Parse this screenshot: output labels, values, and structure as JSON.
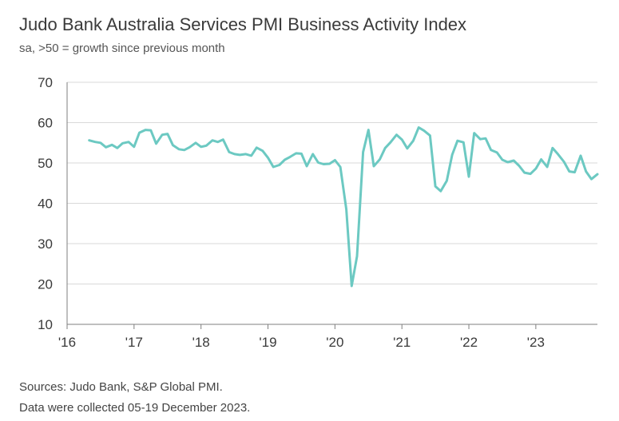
{
  "chart_data": {
    "type": "line",
    "title": "Judo Bank Australia Services PMI Business Activity Index",
    "subtitle": "sa, >50 = growth since previous month",
    "xlabel": "",
    "ylabel": "",
    "ylim": [
      10,
      70
    ],
    "yticks": [
      10,
      20,
      30,
      40,
      50,
      60,
      70
    ],
    "xlim": [
      2016.0,
      2023.92
    ],
    "xticks": [
      {
        "value": 2016,
        "label": "'16"
      },
      {
        "value": 2017,
        "label": "'17"
      },
      {
        "value": 2018,
        "label": "'18"
      },
      {
        "value": 2019,
        "label": "'19"
      },
      {
        "value": 2020,
        "label": "'20"
      },
      {
        "value": 2021,
        "label": "'21"
      },
      {
        "value": 2022,
        "label": "'22"
      },
      {
        "value": 2023,
        "label": "'23"
      }
    ],
    "grid": "horizontal",
    "line_color": "#6cc9c2",
    "series": [
      {
        "name": "",
        "x": [
          2016.33,
          2016.42,
          2016.5,
          2016.58,
          2016.67,
          2016.75,
          2016.83,
          2016.92,
          2017.0,
          2017.08,
          2017.17,
          2017.25,
          2017.33,
          2017.42,
          2017.5,
          2017.58,
          2017.67,
          2017.75,
          2017.83,
          2017.92,
          2018.0,
          2018.08,
          2018.17,
          2018.25,
          2018.33,
          2018.42,
          2018.5,
          2018.58,
          2018.67,
          2018.75,
          2018.83,
          2018.92,
          2019.0,
          2019.08,
          2019.17,
          2019.25,
          2019.33,
          2019.42,
          2019.5,
          2019.58,
          2019.67,
          2019.75,
          2019.83,
          2019.92,
          2020.0,
          2020.08,
          2020.17,
          2020.25,
          2020.33,
          2020.42,
          2020.5,
          2020.58,
          2020.67,
          2020.75,
          2020.83,
          2020.92,
          2021.0,
          2021.08,
          2021.17,
          2021.25,
          2021.33,
          2021.42,
          2021.5,
          2021.58,
          2021.67,
          2021.75,
          2021.83,
          2021.92,
          2022.0,
          2022.08,
          2022.17,
          2022.25,
          2022.33,
          2022.42,
          2022.5,
          2022.58,
          2022.67,
          2022.75,
          2022.83,
          2022.92,
          2023.0,
          2023.08,
          2023.17,
          2023.25,
          2023.33,
          2023.42,
          2023.5,
          2023.58,
          2023.67,
          2023.75,
          2023.83,
          2023.92
        ],
        "values": [
          55.6,
          55.2,
          55.0,
          53.9,
          54.5,
          53.7,
          54.9,
          55.2,
          54.0,
          57.5,
          58.2,
          58.1,
          54.8,
          57.0,
          57.2,
          54.4,
          53.4,
          53.2,
          53.9,
          55.0,
          54.0,
          54.3,
          55.6,
          55.2,
          55.8,
          52.7,
          52.2,
          52.0,
          52.2,
          51.8,
          53.8,
          53.0,
          51.3,
          49.0,
          49.5,
          50.8,
          51.5,
          52.4,
          52.3,
          49.2,
          52.2,
          50.1,
          49.7,
          49.8,
          50.7,
          49.0,
          38.5,
          19.5,
          26.9,
          52.7,
          58.2,
          49.2,
          50.9,
          53.7,
          55.1,
          57.0,
          55.8,
          53.6,
          55.5,
          58.8,
          58.0,
          56.8,
          44.2,
          43.0,
          45.6,
          52.0,
          55.5,
          55.1,
          46.6,
          57.4,
          55.9,
          56.1,
          53.2,
          52.6,
          50.8,
          50.2,
          50.6,
          49.3,
          47.6,
          47.3,
          48.6,
          50.9,
          49.0,
          53.7,
          52.2,
          50.3,
          47.9,
          47.7,
          51.8,
          47.9,
          46.0,
          47.2
        ]
      }
    ]
  },
  "footer": {
    "line1": "Sources: Judo Bank, S&P Global PMI.",
    "line2": "Data were collected 05-19 December 2023."
  }
}
